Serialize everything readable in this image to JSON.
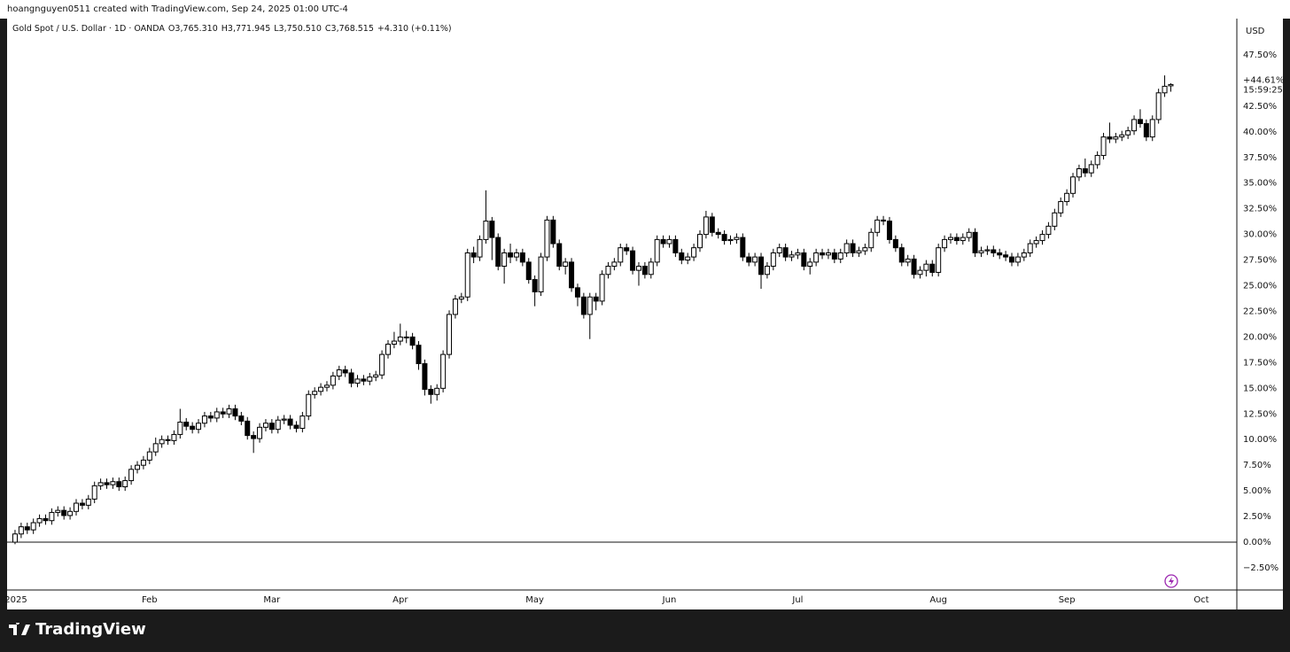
{
  "chart_data": {
    "type": "candlestick",
    "header": "hoangnguyen0511 created with TradingView.com, Sep 24, 2025 01:00 UTC-4",
    "title": "Gold Spot / U.S. Dollar · 1D · OANDA",
    "ohlc_legend": [
      "O3,765.310",
      "H3,771.945",
      "L3,750.510",
      "C3,768.515",
      "+4.310 (+0.11%)"
    ],
    "currency": "USD",
    "last_label": "+44.61%",
    "countdown": "15:59:25",
    "brand": "TradingView",
    "up_color": "#ffffff",
    "down_color": "#000000",
    "border_color": "#000000",
    "zero_line": true,
    "xlim": [
      -1.3,
      199.8
    ],
    "ylim": [
      -4.66,
      50.95
    ],
    "yticks": [
      {
        "value": -2.5,
        "label": "−2.50%"
      },
      {
        "value": 0,
        "label": "0.00%"
      },
      {
        "value": 2.5,
        "label": "2.50%"
      },
      {
        "value": 5,
        "label": "5.00%"
      },
      {
        "value": 7.5,
        "label": "7.50%"
      },
      {
        "value": 10,
        "label": "10.00%"
      },
      {
        "value": 12.5,
        "label": "12.50%"
      },
      {
        "value": 15,
        "label": "15.00%"
      },
      {
        "value": 17.5,
        "label": "17.50%"
      },
      {
        "value": 20,
        "label": "20.00%"
      },
      {
        "value": 22.5,
        "label": "22.50%"
      },
      {
        "value": 25,
        "label": "25.00%"
      },
      {
        "value": 27.5,
        "label": "27.50%"
      },
      {
        "value": 30,
        "label": "30.00%"
      },
      {
        "value": 32.5,
        "label": "32.50%"
      },
      {
        "value": 35,
        "label": "35.00%"
      },
      {
        "value": 37.5,
        "label": "37.50%"
      },
      {
        "value": 40,
        "label": "40.00%"
      },
      {
        "value": 42.5,
        "label": "42.50%"
      },
      {
        "value": 45,
        "label": "45.00%"
      },
      {
        "value": 47.5,
        "label": "47.50%"
      }
    ],
    "categories": [
      "2025",
      null,
      null,
      null,
      null,
      null,
      null,
      null,
      null,
      null,
      null,
      null,
      null,
      null,
      null,
      null,
      null,
      null,
      null,
      null,
      null,
      null,
      "Feb",
      null,
      null,
      null,
      null,
      null,
      null,
      null,
      null,
      null,
      null,
      null,
      null,
      null,
      null,
      null,
      null,
      null,
      null,
      null,
      "Mar",
      null,
      null,
      null,
      null,
      null,
      null,
      null,
      null,
      null,
      null,
      null,
      null,
      null,
      null,
      null,
      null,
      null,
      null,
      null,
      null,
      "Apr",
      null,
      null,
      null,
      null,
      null,
      null,
      null,
      null,
      null,
      null,
      null,
      null,
      null,
      null,
      null,
      null,
      null,
      null,
      null,
      null,
      null,
      "May",
      null,
      null,
      null,
      null,
      null,
      null,
      null,
      null,
      null,
      null,
      null,
      null,
      null,
      null,
      null,
      null,
      null,
      null,
      null,
      null,
      null,
      "Jun",
      null,
      null,
      null,
      null,
      null,
      null,
      null,
      null,
      null,
      null,
      null,
      null,
      null,
      null,
      null,
      null,
      null,
      null,
      null,
      null,
      "Jul",
      null,
      null,
      null,
      null,
      null,
      null,
      null,
      null,
      null,
      null,
      null,
      null,
      null,
      null,
      null,
      null,
      null,
      null,
      null,
      null,
      null,
      null,
      "Aug",
      null,
      null,
      null,
      null,
      null,
      null,
      null,
      null,
      null,
      null,
      null,
      null,
      null,
      null,
      null,
      null,
      null,
      null,
      null,
      null,
      "Sep",
      null,
      null,
      null,
      null,
      null,
      null,
      null,
      null,
      null,
      null,
      null,
      null,
      null,
      null,
      null,
      null,
      null,
      null,
      null,
      null,
      null,
      "Oct"
    ],
    "open": [
      0.0,
      0.8,
      1.5,
      1.2,
      1.9,
      2.3,
      2.1,
      2.9,
      3.1,
      2.6,
      3.0,
      3.8,
      3.6,
      4.2,
      5.5,
      5.8,
      5.6,
      5.9,
      5.4,
      6.0,
      7.1,
      7.5,
      8.0,
      8.8,
      9.6,
      10.0,
      9.9,
      10.5,
      11.7,
      11.3,
      11.0,
      11.6,
      12.3,
      12.1,
      12.7,
      12.5,
      13.0,
      12.3,
      11.8,
      10.4,
      10.1,
      11.2,
      11.6,
      11.0,
      11.9,
      12.0,
      11.4,
      11.1,
      12.3,
      14.4,
      14.7,
      15.1,
      15.3,
      16.2,
      16.8,
      16.5,
      15.5,
      15.9,
      15.7,
      16.1,
      16.3,
      18.3,
      19.3,
      19.6,
      20.0,
      20.0,
      19.2,
      17.4,
      14.9,
      14.4,
      15.0,
      18.3,
      22.2,
      23.7,
      23.9,
      28.2,
      27.8,
      29.5,
      31.3,
      29.7,
      26.9,
      28.2,
      27.8,
      28.2,
      27.3,
      25.6,
      24.4,
      27.8,
      31.4,
      29.1,
      26.9,
      27.3,
      24.8,
      23.9,
      22.2,
      23.9,
      23.5,
      26.1,
      26.9,
      27.3,
      28.7,
      28.4,
      26.5,
      26.9,
      26.1,
      27.3,
      29.5,
      29.1,
      29.5,
      28.2,
      27.5,
      27.8,
      28.7,
      30.0,
      31.7,
      30.2,
      30.0,
      29.4,
      29.5,
      29.7,
      27.8,
      27.3,
      27.8,
      26.1,
      26.9,
      28.2,
      28.7,
      27.8,
      28.0,
      28.2,
      26.9,
      27.3,
      28.2,
      28.0,
      28.2,
      27.6,
      28.2,
      29.1,
      28.2,
      28.4,
      28.7,
      30.2,
      31.4,
      31.3,
      29.5,
      28.7,
      27.3,
      27.6,
      26.1,
      26.5,
      27.1,
      26.3,
      28.7,
      29.5,
      29.7,
      29.4,
      29.7,
      30.2,
      28.2,
      28.4,
      28.5,
      28.2,
      28.0,
      27.8,
      27.3,
      27.8,
      28.2,
      29.1,
      29.4,
      30.0,
      30.8,
      32.1,
      33.2,
      34.0,
      35.6,
      36.4,
      36.0,
      36.8,
      37.7,
      39.5,
      39.3,
      39.5,
      39.7,
      40.1,
      41.2,
      40.8,
      39.5,
      41.2,
      43.8,
      44.48,
      null,
      null,
      null,
      null,
      null
    ],
    "high": [
      1.2,
      1.9,
      1.9,
      2.3,
      2.7,
      2.7,
      3.3,
      3.5,
      3.5,
      3.4,
      4.2,
      4.2,
      4.6,
      5.9,
      6.2,
      6.2,
      6.3,
      6.3,
      6.4,
      7.5,
      7.9,
      8.4,
      9.2,
      10.2,
      10.4,
      10.4,
      10.9,
      13.0,
      12.1,
      11.7,
      12.0,
      12.7,
      12.7,
      13.1,
      13.1,
      13.4,
      13.4,
      12.7,
      12.2,
      10.8,
      11.6,
      12.0,
      12.0,
      12.3,
      12.4,
      12.4,
      11.8,
      12.7,
      14.8,
      15.1,
      15.5,
      15.7,
      16.6,
      17.2,
      17.2,
      16.9,
      16.3,
      16.3,
      16.5,
      16.7,
      18.7,
      19.7,
      20.5,
      21.3,
      20.6,
      20.4,
      19.6,
      17.8,
      15.3,
      15.4,
      18.7,
      22.6,
      24.1,
      24.3,
      28.6,
      28.8,
      29.9,
      34.3,
      31.7,
      30.1,
      28.6,
      29.1,
      28.6,
      28.6,
      27.7,
      26.0,
      28.2,
      31.8,
      31.8,
      29.5,
      27.7,
      27.7,
      25.2,
      24.3,
      24.3,
      24.3,
      26.5,
      27.3,
      27.7,
      29.1,
      29.1,
      28.8,
      27.3,
      27.3,
      27.7,
      29.9,
      29.9,
      29.9,
      29.9,
      28.6,
      28.2,
      29.1,
      30.4,
      32.3,
      32.1,
      30.6,
      30.4,
      29.9,
      30.1,
      30.1,
      28.2,
      28.2,
      28.2,
      27.3,
      28.6,
      29.1,
      29.1,
      28.4,
      28.6,
      28.6,
      27.7,
      28.6,
      28.6,
      28.6,
      28.6,
      28.6,
      29.5,
      29.5,
      28.8,
      29.1,
      30.6,
      31.8,
      31.8,
      31.7,
      29.9,
      29.1,
      28.0,
      28.0,
      26.9,
      27.5,
      27.5,
      29.1,
      29.9,
      30.1,
      30.1,
      30.1,
      30.6,
      30.6,
      28.8,
      28.9,
      28.9,
      28.6,
      28.4,
      28.2,
      28.2,
      28.6,
      29.5,
      29.8,
      30.4,
      31.2,
      32.5,
      33.6,
      34.4,
      36.0,
      36.8,
      37.4,
      37.2,
      38.1,
      39.9,
      40.9,
      39.9,
      40.1,
      40.5,
      41.6,
      42.2,
      41.2,
      41.6,
      44.2,
      45.5,
      44.74,
      null,
      null,
      null,
      null,
      null
    ],
    "low": [
      -0.2,
      0.4,
      0.8,
      0.8,
      1.5,
      1.7,
      1.7,
      2.5,
      2.2,
      2.2,
      2.6,
      3.2,
      3.2,
      3.8,
      5.1,
      5.2,
      5.2,
      5.0,
      5.0,
      5.6,
      6.7,
      7.1,
      7.6,
      8.4,
      9.2,
      9.5,
      9.5,
      10.1,
      10.9,
      10.6,
      10.6,
      11.2,
      11.7,
      11.7,
      12.1,
      12.1,
      11.9,
      11.4,
      10.0,
      8.7,
      9.7,
      10.8,
      10.6,
      10.6,
      11.5,
      11.0,
      10.7,
      10.7,
      11.9,
      14.0,
      14.3,
      14.7,
      14.9,
      15.8,
      16.1,
      15.1,
      15.1,
      15.3,
      15.3,
      15.7,
      15.9,
      17.9,
      18.9,
      19.2,
      19.4,
      18.8,
      16.8,
      14.3,
      13.5,
      13.8,
      14.6,
      17.9,
      21.8,
      23.3,
      23.5,
      27.2,
      27.4,
      29.1,
      27.5,
      26.5,
      25.2,
      27.2,
      27.4,
      26.9,
      25.2,
      23.0,
      24.0,
      27.4,
      28.7,
      26.5,
      26.1,
      24.4,
      23.0,
      21.8,
      19.8,
      22.6,
      23.1,
      25.7,
      26.5,
      26.9,
      28.0,
      26.1,
      25.0,
      25.7,
      25.7,
      26.9,
      28.7,
      28.7,
      27.8,
      27.1,
      27.1,
      27.4,
      28.3,
      29.6,
      29.8,
      29.6,
      29.0,
      29.0,
      29.1,
      27.4,
      26.9,
      26.9,
      24.7,
      25.7,
      26.5,
      27.8,
      27.4,
      27.4,
      27.6,
      26.5,
      26.1,
      26.9,
      27.6,
      27.6,
      27.2,
      27.2,
      27.8,
      27.8,
      27.8,
      28.0,
      28.3,
      29.8,
      30.9,
      29.1,
      28.3,
      26.9,
      26.9,
      25.7,
      25.7,
      25.9,
      25.9,
      25.9,
      28.3,
      29.1,
      29.0,
      29.0,
      29.3,
      27.8,
      27.8,
      28.0,
      27.8,
      27.6,
      27.4,
      26.9,
      26.9,
      27.4,
      27.8,
      28.7,
      29.0,
      29.6,
      30.4,
      31.7,
      32.8,
      33.6,
      35.2,
      35.6,
      35.6,
      36.4,
      37.3,
      38.9,
      38.9,
      39.1,
      39.3,
      39.7,
      40.4,
      39.1,
      39.1,
      40.8,
      43.4,
      43.91,
      null,
      null,
      null,
      null,
      null
    ],
    "close": [
      0.8,
      1.5,
      1.2,
      1.9,
      2.3,
      2.1,
      2.9,
      3.1,
      2.6,
      3.0,
      3.8,
      3.6,
      4.2,
      5.5,
      5.8,
      5.6,
      5.9,
      5.4,
      6.0,
      7.1,
      7.5,
      8.0,
      8.8,
      9.6,
      10.0,
      9.9,
      10.5,
      11.7,
      11.3,
      11.0,
      11.6,
      12.3,
      12.1,
      12.7,
      12.5,
      13.0,
      12.3,
      11.8,
      10.4,
      10.1,
      11.2,
      11.6,
      11.0,
      11.9,
      12.0,
      11.4,
      11.1,
      12.3,
      14.4,
      14.7,
      15.1,
      15.3,
      16.2,
      16.8,
      16.5,
      15.5,
      15.9,
      15.7,
      16.1,
      16.3,
      18.3,
      19.3,
      19.6,
      20.0,
      20.0,
      19.2,
      17.4,
      14.9,
      14.4,
      15.0,
      18.3,
      22.2,
      23.7,
      23.9,
      28.2,
      27.8,
      29.5,
      31.3,
      29.7,
      26.9,
      28.2,
      27.8,
      28.2,
      27.3,
      25.6,
      24.4,
      27.8,
      31.4,
      29.1,
      26.9,
      27.3,
      24.8,
      23.9,
      22.2,
      23.9,
      23.5,
      26.1,
      26.9,
      27.3,
      28.7,
      28.4,
      26.5,
      26.9,
      26.1,
      27.3,
      29.5,
      29.1,
      29.5,
      28.2,
      27.5,
      27.8,
      28.7,
      30.0,
      31.7,
      30.2,
      30.0,
      29.4,
      29.5,
      29.7,
      27.8,
      27.3,
      27.8,
      26.1,
      26.9,
      28.2,
      28.7,
      27.8,
      28.0,
      28.2,
      26.9,
      27.3,
      28.2,
      28.0,
      28.2,
      27.6,
      28.2,
      29.1,
      28.2,
      28.4,
      28.7,
      30.2,
      31.4,
      31.3,
      29.5,
      28.7,
      27.3,
      27.6,
      26.1,
      26.5,
      27.1,
      26.3,
      28.7,
      29.5,
      29.7,
      29.4,
      29.7,
      30.2,
      28.2,
      28.4,
      28.5,
      28.2,
      28.0,
      27.8,
      27.3,
      27.8,
      28.2,
      29.1,
      29.4,
      30.0,
      30.8,
      32.1,
      33.2,
      34.0,
      35.6,
      36.4,
      36.0,
      36.8,
      37.7,
      39.5,
      39.3,
      39.5,
      39.7,
      40.1,
      41.2,
      40.8,
      39.5,
      41.2,
      43.8,
      44.44,
      44.61,
      null,
      null,
      null,
      null,
      null
    ]
  }
}
